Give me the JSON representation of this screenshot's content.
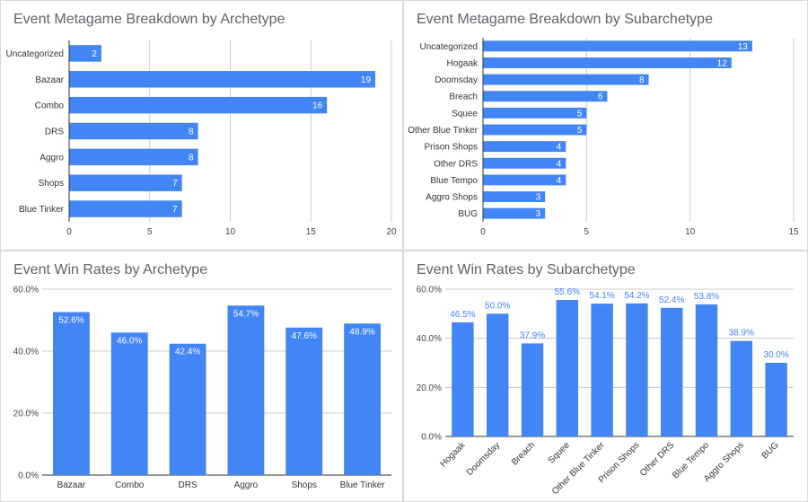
{
  "chart_data": [
    {
      "type": "bar",
      "orientation": "horizontal",
      "title": "Event Metagame Breakdown by Archetype",
      "categories": [
        "Uncategorized",
        "Bazaar",
        "Combo",
        "DRS",
        "Aggro",
        "Shops",
        "Blue Tinker"
      ],
      "values": [
        2,
        19,
        16,
        8,
        8,
        7,
        7
      ],
      "data_labels": [
        "2",
        "19",
        "16",
        "8",
        "8",
        "7",
        "7"
      ],
      "xlim": [
        0,
        20
      ],
      "xticks": [
        0,
        5,
        10,
        15,
        20
      ],
      "xtick_labels": [
        "0",
        "5",
        "10",
        "15",
        "20"
      ],
      "grid": true,
      "bar_color": "#4285f4"
    },
    {
      "type": "bar",
      "orientation": "horizontal",
      "title": "Event Metagame Breakdown by Subarchetype",
      "categories": [
        "Uncategorized",
        "Hogaak",
        "Doomsday",
        "Breach",
        "Squee",
        "Other Blue Tinker",
        "Prison Shops",
        "Other DRS",
        "Blue Tempo",
        "Aggro Shops",
        "BUG"
      ],
      "values": [
        13,
        12,
        8,
        6,
        5,
        5,
        4,
        4,
        4,
        3,
        3
      ],
      "data_labels": [
        "13",
        "12",
        "8",
        "6",
        "5",
        "5",
        "4",
        "4",
        "4",
        "3",
        "3"
      ],
      "xlim": [
        0,
        15
      ],
      "xticks": [
        0,
        5,
        10,
        15
      ],
      "xtick_labels": [
        "0",
        "5",
        "10",
        "15"
      ],
      "grid": true,
      "bar_color": "#4285f4"
    },
    {
      "type": "bar",
      "orientation": "vertical",
      "title": "Event Win Rates by Archetype",
      "categories": [
        "Bazaar",
        "Combo",
        "DRS",
        "Aggro",
        "Shops",
        "Blue Tinker"
      ],
      "values": [
        52.6,
        46.0,
        42.4,
        54.7,
        47.6,
        48.9
      ],
      "data_labels": [
        "52.6%",
        "46.0%",
        "42.4%",
        "54.7%",
        "47.6%",
        "48.9%"
      ],
      "data_label_position": "inside",
      "ylim": [
        0,
        60
      ],
      "yticks": [
        0,
        20,
        40,
        60
      ],
      "ytick_labels": [
        "0.0%",
        "20.0%",
        "40.0%",
        "60.0%"
      ],
      "grid": true,
      "bar_color": "#4285f4"
    },
    {
      "type": "bar",
      "orientation": "vertical",
      "title": "Event Win Rates by Subarchetype",
      "categories": [
        "Hogaak",
        "Doomsday",
        "Breach",
        "Squee",
        "Other Blue Tinker",
        "Prison Shops",
        "Other DRS",
        "Blue Tempo",
        "Aggro Shops",
        "BUG"
      ],
      "values": [
        46.5,
        50.0,
        37.9,
        55.6,
        54.1,
        54.2,
        52.4,
        53.8,
        38.9,
        30.0
      ],
      "data_labels": [
        "46.5%",
        "50.0%",
        "37.9%",
        "55.6%",
        "54.1%",
        "54.2%",
        "52.4%",
        "53.8%",
        "38.9%",
        "30.0%"
      ],
      "data_label_position": "above",
      "xtick_rotation": -45,
      "ylim": [
        0,
        60
      ],
      "yticks": [
        0,
        20,
        40,
        60
      ],
      "ytick_labels": [
        "0.0%",
        "20.0%",
        "40.0%",
        "60.0%"
      ],
      "grid": true,
      "bar_color": "#4285f4"
    }
  ]
}
